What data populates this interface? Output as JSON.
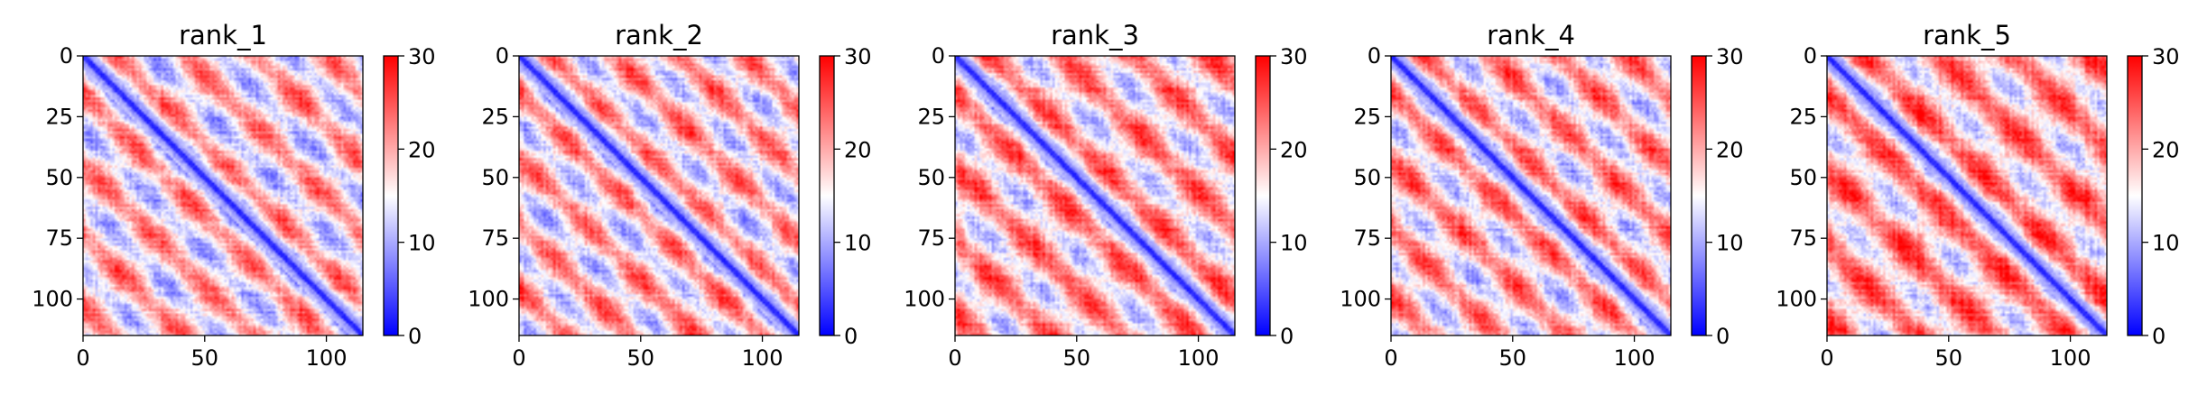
{
  "chart_data": [
    {
      "type": "heatmap",
      "title": "rank_1",
      "xlim": [
        0,
        115
      ],
      "ylim": [
        115,
        0
      ],
      "xticks": [
        "0",
        "50",
        "100"
      ],
      "yticks": [
        "0",
        "25",
        "50",
        "75",
        "100"
      ],
      "colorbar": {
        "range": [
          0,
          30
        ],
        "ticks": [
          "0",
          "10",
          "20",
          "30"
        ],
        "colormap": "bwr"
      },
      "pattern": {
        "size": 115,
        "seed": 1,
        "period": 29,
        "stripe_offset": 13,
        "high_bias": 0.0
      }
    },
    {
      "type": "heatmap",
      "title": "rank_2",
      "xlim": [
        0,
        115
      ],
      "ylim": [
        115,
        0
      ],
      "xticks": [
        "0",
        "50",
        "100"
      ],
      "yticks": [
        "0",
        "25",
        "50",
        "75",
        "100"
      ],
      "colorbar": {
        "range": [
          0,
          30
        ],
        "ticks": [
          "0",
          "10",
          "20",
          "30"
        ],
        "colormap": "bwr"
      },
      "pattern": {
        "size": 115,
        "seed": 2,
        "period": 27,
        "stripe_offset": 12,
        "high_bias": 0.5
      }
    },
    {
      "type": "heatmap",
      "title": "rank_3",
      "xlim": [
        0,
        115
      ],
      "ylim": [
        115,
        0
      ],
      "xticks": [
        "0",
        "50",
        "100"
      ],
      "yticks": [
        "0",
        "25",
        "50",
        "75",
        "100"
      ],
      "colorbar": {
        "range": [
          0,
          30
        ],
        "ticks": [
          "0",
          "10",
          "20",
          "30"
        ],
        "colormap": "bwr"
      },
      "pattern": {
        "size": 115,
        "seed": 3,
        "period": 30,
        "stripe_offset": 14,
        "high_bias": 1.5
      }
    },
    {
      "type": "heatmap",
      "title": "rank_4",
      "xlim": [
        0,
        115
      ],
      "ylim": [
        115,
        0
      ],
      "xticks": [
        "0",
        "50",
        "100"
      ],
      "yticks": [
        "0",
        "25",
        "50",
        "75",
        "100"
      ],
      "colorbar": {
        "range": [
          0,
          30
        ],
        "ticks": [
          "0",
          "10",
          "20",
          "30"
        ],
        "colormap": "bwr"
      },
      "pattern": {
        "size": 115,
        "seed": 4,
        "period": 28,
        "stripe_offset": 13,
        "high_bias": 1.0
      }
    },
    {
      "type": "heatmap",
      "title": "rank_5",
      "xlim": [
        0,
        115
      ],
      "ylim": [
        115,
        0
      ],
      "xticks": [
        "0",
        "50",
        "100"
      ],
      "yticks": [
        "0",
        "25",
        "50",
        "75",
        "100"
      ],
      "colorbar": {
        "range": [
          0,
          30
        ],
        "ticks": [
          "0",
          "10",
          "20",
          "30"
        ],
        "colormap": "bwr"
      },
      "pattern": {
        "size": 115,
        "seed": 5,
        "period": 31,
        "stripe_offset": 15,
        "high_bias": 2.5
      }
    }
  ]
}
